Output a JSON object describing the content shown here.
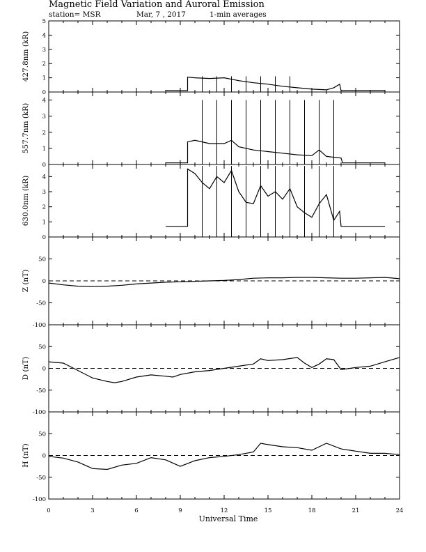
{
  "header": {
    "title": "Magnetic Field Variation and Auroral Emission",
    "station": "station= MSR",
    "date": "Mar, 7  , 2017",
    "averaging": "1-min averages"
  },
  "chart_data": [
    {
      "type": "line",
      "ylabel": "427.8nm (kR)",
      "ylim": [
        0,
        5
      ],
      "yticks": [
        "0",
        "1",
        "2",
        "3",
        "4",
        "5"
      ],
      "x": [
        8,
        9.5,
        9.5,
        10,
        11,
        12,
        13,
        14,
        15,
        16,
        17,
        18,
        19,
        19.5,
        19.9,
        20,
        23
      ],
      "y": [
        0.1,
        0.1,
        1.05,
        1.0,
        0.95,
        1.0,
        0.8,
        0.65,
        0.55,
        0.4,
        0.3,
        0.2,
        0.15,
        0.3,
        0.55,
        0.1,
        0.1
      ],
      "spikes": [
        10.5,
        11.5,
        12.5,
        13.5,
        14.5,
        15.5,
        16.5
      ],
      "spike_top": 1.1
    },
    {
      "type": "line",
      "ylabel": "557.7nm (kR)",
      "ylim": [
        0,
        4.5
      ],
      "yticks": [
        "0",
        "1",
        "2",
        "3",
        "4"
      ],
      "x": [
        8,
        9.5,
        9.5,
        10,
        11,
        12,
        12.5,
        13,
        14,
        15,
        16,
        17,
        18,
        18.5,
        19,
        20,
        20.1,
        23
      ],
      "y": [
        0.1,
        0.1,
        1.4,
        1.5,
        1.3,
        1.3,
        1.5,
        1.1,
        0.9,
        0.8,
        0.7,
        0.6,
        0.55,
        0.9,
        0.5,
        0.4,
        0.1,
        0.1
      ],
      "spikes": [
        10.5,
        11.5,
        12.5,
        13.5,
        14.5,
        15.5,
        16.5,
        17.5,
        18.5,
        19.5
      ],
      "spike_top": 4.0
    },
    {
      "type": "line",
      "ylabel": "630.0nm (kR)",
      "ylim": [
        0,
        4.8
      ],
      "yticks": [
        "0",
        "1",
        "2",
        "3",
        "4"
      ],
      "x": [
        8,
        9.5,
        9.5,
        10,
        10.5,
        11,
        11.5,
        12,
        12.5,
        13,
        13.5,
        14,
        14.5,
        15,
        15.5,
        16,
        16.5,
        17,
        17.5,
        18,
        18.5,
        19,
        19.5,
        19.9,
        20,
        23
      ],
      "y": [
        0.7,
        0.7,
        4.5,
        4.2,
        3.6,
        3.2,
        4.0,
        3.6,
        4.4,
        3.0,
        2.3,
        2.2,
        3.4,
        2.7,
        3.0,
        2.5,
        3.2,
        2.0,
        1.6,
        1.3,
        2.2,
        2.8,
        1.1,
        1.7,
        0.7,
        0.7
      ],
      "spikes": [
        10.5,
        11.5,
        12.5,
        13.5,
        14.5,
        15.5,
        16.5,
        17.5,
        18.5,
        19.5
      ],
      "spike_top": 4.7
    },
    {
      "type": "line",
      "ylabel": "Z (nT)",
      "ylim": [
        -100,
        100
      ],
      "yticks": [
        "50",
        "0",
        "-50",
        "-100"
      ],
      "x": [
        0,
        1,
        2,
        3,
        4,
        5,
        6,
        7,
        8,
        9,
        10,
        11,
        12,
        13,
        14,
        15,
        16,
        17,
        18,
        19,
        20,
        21,
        22,
        23,
        24
      ],
      "y": [
        -5,
        -9,
        -12,
        -13,
        -12,
        -10,
        -7,
        -5,
        -3,
        -2,
        -1,
        0,
        1,
        3,
        6,
        7,
        7,
        8,
        8,
        7,
        6,
        6,
        7,
        8,
        5
      ]
    },
    {
      "type": "line",
      "ylabel": "D (nT)",
      "ylim": [
        -100,
        100
      ],
      "yticks": [
        "50",
        "0",
        "-50",
        "-100"
      ],
      "x": [
        0,
        1,
        2,
        3,
        4,
        4.5,
        5,
        6,
        7,
        8,
        8.5,
        9,
        10,
        11,
        12,
        13,
        14,
        14.5,
        15,
        16,
        17,
        17.5,
        18,
        18.5,
        19,
        19.5,
        20,
        21,
        22,
        23,
        24
      ],
      "y": [
        15,
        12,
        -5,
        -22,
        -30,
        -33,
        -30,
        -20,
        -15,
        -18,
        -20,
        -14,
        -8,
        -5,
        0,
        5,
        10,
        22,
        18,
        20,
        25,
        12,
        2,
        10,
        22,
        20,
        -3,
        2,
        5,
        15,
        25
      ]
    },
    {
      "type": "line",
      "ylabel": "H (nT)",
      "ylim": [
        -100,
        100
      ],
      "yticks": [
        "50",
        "0",
        "-50",
        "-100"
      ],
      "x": [
        0,
        1,
        2,
        3,
        4,
        5,
        6,
        7,
        8,
        9,
        10,
        11,
        12,
        13,
        14,
        14.5,
        15,
        16,
        17,
        18,
        19,
        20,
        21,
        22,
        23,
        24
      ],
      "y": [
        -2,
        -6,
        -15,
        -30,
        -32,
        -22,
        -18,
        -5,
        -10,
        -25,
        -12,
        -5,
        -2,
        2,
        8,
        28,
        25,
        20,
        18,
        12,
        28,
        15,
        10,
        5,
        5,
        2
      ]
    }
  ],
  "xaxis": {
    "label": "Universal Time",
    "xlim": [
      0,
      24
    ],
    "ticks": [
      "0",
      "3",
      "6",
      "9",
      "12",
      "15",
      "18",
      "21",
      "24"
    ]
  }
}
